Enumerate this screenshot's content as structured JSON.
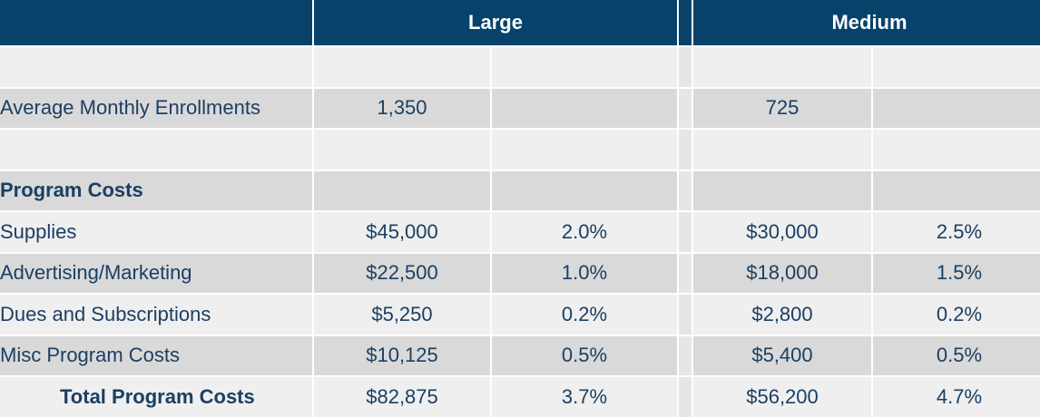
{
  "header": {
    "group1": "Large",
    "group2": "Medium"
  },
  "rows": [
    {
      "label": "",
      "c1": "",
      "c2": "",
      "c3": "",
      "c4": ""
    },
    {
      "label": "Average Monthly Enrollments",
      "c1": "1,350",
      "c2": "",
      "c3": "725",
      "c4": ""
    },
    {
      "label": "",
      "c1": "",
      "c2": "",
      "c3": "",
      "c4": ""
    },
    {
      "label": "Program Costs",
      "c1": "",
      "c2": "",
      "c3": "",
      "c4": ""
    },
    {
      "label": "Supplies",
      "c1": "$45,000",
      "c2": "2.0%",
      "c3": "$30,000",
      "c4": "2.5%"
    },
    {
      "label": "Advertising/Marketing",
      "c1": "$22,500",
      "c2": "1.0%",
      "c3": "$18,000",
      "c4": "1.5%"
    },
    {
      "label": "Dues and Subscriptions",
      "c1": "$5,250",
      "c2": "0.2%",
      "c3": "$2,800",
      "c4": "0.2%"
    },
    {
      "label": "Misc Program Costs",
      "c1": "$10,125",
      "c2": "0.5%",
      "c3": "$5,400",
      "c4": "0.5%"
    },
    {
      "label": "Total Program Costs",
      "c1": "$82,875",
      "c2": "3.7%",
      "c3": "$56,200",
      "c4": "4.7%"
    }
  ],
  "colors": {
    "header_bg": "#07426b",
    "text": "#1b3f63",
    "row_light": "#efefef",
    "row_dark": "#d9d9d9"
  }
}
